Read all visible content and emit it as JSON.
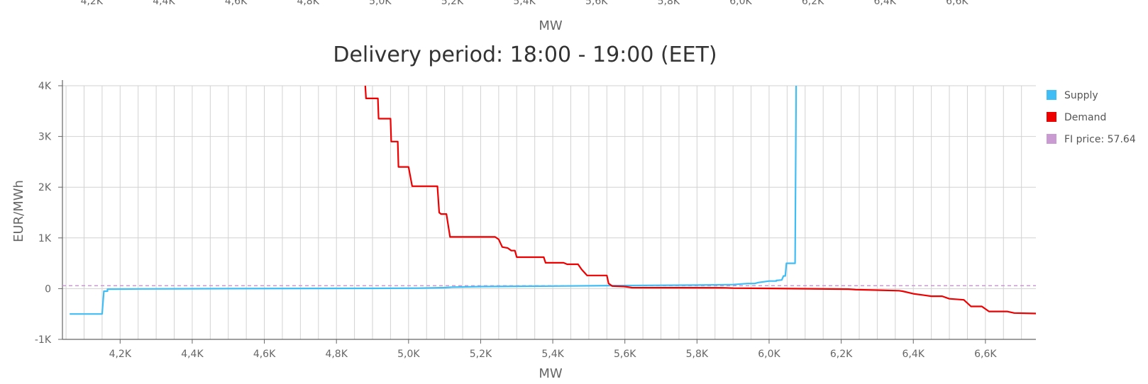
{
  "top_strip": {
    "tick_labels": [
      "4,2K",
      "4,4K",
      "4,6K",
      "4,8K",
      "5,0K",
      "5,2K",
      "5,4K",
      "5,6K",
      "5,8K",
      "6,0K",
      "6,2K",
      "6,4K",
      "6,6K"
    ],
    "xlabel": "MW"
  },
  "colors": {
    "supply": "#41bdf5",
    "demand": "#ee0000",
    "price": "#c99bd2",
    "grid": "#d2d2d2",
    "axis": "#666666"
  },
  "chart_data": {
    "type": "line",
    "title": "Delivery period: 18:00 - 19:00 (EET)",
    "xlabel": "MW",
    "ylabel": "EUR/MWh",
    "xlim": [
      4040,
      6740
    ],
    "ylim": [
      -1000,
      4000
    ],
    "x_tick_values": [
      4200,
      4400,
      4600,
      4800,
      5000,
      5200,
      5400,
      5600,
      5800,
      6000,
      6200,
      6400,
      6600
    ],
    "x_tick_labels": [
      "4,2K",
      "4,4K",
      "4,6K",
      "4,8K",
      "5,0K",
      "5,2K",
      "5,4K",
      "5,6K",
      "5,8K",
      "6,0K",
      "6,2K",
      "6,4K",
      "6,6K"
    ],
    "y_tick_values": [
      4000,
      3000,
      2000,
      1000,
      0,
      -1000
    ],
    "y_tick_labels": [
      "4K",
      "3K",
      "2K",
      "1K",
      "0",
      "-1K"
    ],
    "grid": true,
    "minor_grid_step": 50,
    "legend_position": "right",
    "legend": [
      "Supply",
      "Demand",
      "FI price: 57.64"
    ],
    "price_line": {
      "name": "FI price: 57.64",
      "value": 57.64
    },
    "series": [
      {
        "name": "Supply",
        "points": [
          [
            4060,
            -500
          ],
          [
            4150,
            -500
          ],
          [
            4155,
            -50
          ],
          [
            4165,
            -50
          ],
          [
            4165,
            -10
          ],
          [
            4260,
            -5
          ],
          [
            4500,
            0
          ],
          [
            4900,
            5
          ],
          [
            5030,
            10
          ],
          [
            5100,
            20
          ],
          [
            5120,
            30
          ],
          [
            5200,
            40
          ],
          [
            5400,
            50
          ],
          [
            5560,
            60
          ],
          [
            5800,
            70
          ],
          [
            5900,
            80
          ],
          [
            5940,
            100
          ],
          [
            5960,
            100
          ],
          [
            5970,
            120
          ],
          [
            6000,
            150
          ],
          [
            6020,
            150
          ],
          [
            6020,
            160
          ],
          [
            6035,
            170
          ],
          [
            6040,
            250
          ],
          [
            6045,
            250
          ],
          [
            6048,
            500
          ],
          [
            6072,
            500
          ],
          [
            6075,
            4000
          ]
        ]
      },
      {
        "name": "Demand",
        "points": [
          [
            4880,
            4000
          ],
          [
            4882,
            3750
          ],
          [
            4915,
            3750
          ],
          [
            4917,
            3350
          ],
          [
            4950,
            3350
          ],
          [
            4952,
            2900
          ],
          [
            4970,
            2900
          ],
          [
            4972,
            2400
          ],
          [
            5000,
            2400
          ],
          [
            5010,
            2020
          ],
          [
            5080,
            2020
          ],
          [
            5085,
            1500
          ],
          [
            5090,
            1470
          ],
          [
            5105,
            1470
          ],
          [
            5115,
            1020
          ],
          [
            5240,
            1020
          ],
          [
            5250,
            970
          ],
          [
            5260,
            820
          ],
          [
            5275,
            800
          ],
          [
            5285,
            750
          ],
          [
            5295,
            750
          ],
          [
            5300,
            620
          ],
          [
            5375,
            620
          ],
          [
            5380,
            510
          ],
          [
            5430,
            510
          ],
          [
            5440,
            480
          ],
          [
            5470,
            480
          ],
          [
            5480,
            380
          ],
          [
            5490,
            300
          ],
          [
            5495,
            260
          ],
          [
            5550,
            260
          ],
          [
            5555,
            100
          ],
          [
            5565,
            50
          ],
          [
            5600,
            40
          ],
          [
            5620,
            20
          ],
          [
            5880,
            15
          ],
          [
            5900,
            10
          ],
          [
            5980,
            5
          ],
          [
            6060,
            0
          ],
          [
            6220,
            -10
          ],
          [
            6240,
            -20
          ],
          [
            6300,
            -30
          ],
          [
            6360,
            -40
          ],
          [
            6370,
            -50
          ],
          [
            6400,
            -100
          ],
          [
            6430,
            -130
          ],
          [
            6450,
            -150
          ],
          [
            6480,
            -150
          ],
          [
            6500,
            -200
          ],
          [
            6540,
            -220
          ],
          [
            6560,
            -350
          ],
          [
            6590,
            -350
          ],
          [
            6610,
            -450
          ],
          [
            6660,
            -450
          ],
          [
            6680,
            -480
          ],
          [
            6740,
            -490
          ]
        ]
      }
    ]
  }
}
